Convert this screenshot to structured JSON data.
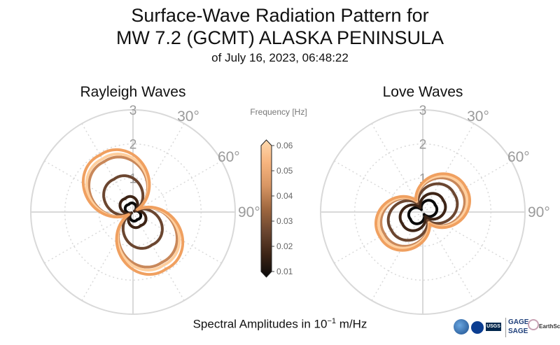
{
  "title": {
    "line1": "Surface-Wave Radiation Pattern for",
    "line2": "MW 7.2 (GCMT) ALASKA PENINSULA",
    "line3": "of July 16, 2023, 06:48:22"
  },
  "footer": {
    "label": "Spectral Amplitudes in 10",
    "exponent": "−1",
    "unit": "m/Hz"
  },
  "logos": {
    "usgs": "USGS",
    "gage": "GAGE",
    "sage": "SAGE",
    "earthscope": "EarthScope"
  },
  "colors": {
    "grid": "#d9d9d9",
    "tick_label": "#9a9a9a",
    "text": "#111111"
  },
  "chart_data": [
    {
      "type": "polar",
      "title": "Rayleigh Waves",
      "r_ticks": [
        "1",
        "2",
        "3"
      ],
      "rlim": [
        0,
        3
      ],
      "angle_ticks": [
        "30°",
        "60°",
        "90°"
      ],
      "series": [
        {
          "name": "0.01 Hz",
          "color": "#0a0a0a",
          "a": 0.15,
          "b": 0.05,
          "rot": 0.0,
          "lobe": 1.1,
          "azimuth_deg": -30
        },
        {
          "name": "0.02 Hz",
          "color": "#3d2416",
          "a": 0.3,
          "b": 0.05,
          "rot": 0.0,
          "lobe": 1.4,
          "azimuth_deg": -30
        },
        {
          "name": "0.03 Hz",
          "color": "#6b4630",
          "a": 0.75,
          "b": 0.1,
          "rot": 0.0,
          "lobe": 1.7,
          "azimuth_deg": -30
        },
        {
          "name": "0.05 Hz",
          "color": "#c9885a",
          "a": 1.15,
          "b": 0.15,
          "rot": 0.0,
          "lobe": 2.0,
          "azimuth_deg": -30
        },
        {
          "name": "0.055 Hz",
          "color": "#ffcf9e",
          "a": 1.22,
          "b": 0.15,
          "rot": 0.0,
          "lobe": 2.05,
          "azimuth_deg": -30
        },
        {
          "name": "0.06 Hz",
          "color": "#f0a060",
          "a": 1.32,
          "b": 0.15,
          "rot": 0.0,
          "lobe": 2.15,
          "azimuth_deg": -30
        }
      ]
    },
    {
      "type": "polar",
      "title": "Love Waves",
      "r_ticks": [
        "1",
        "2",
        "3"
      ],
      "rlim": [
        0,
        3
      ],
      "angle_ticks": [
        "30°",
        "60°",
        "90°"
      ],
      "series": [
        {
          "name": "0.01 Hz",
          "color": "#0a0a0a",
          "a": 0.25,
          "b": 0.08,
          "rot": 0.0,
          "lobe": 1.0,
          "azimuth_deg": 60
        },
        {
          "name": "0.02 Hz",
          "color": "#3d2416",
          "a": 0.4,
          "b": 0.15,
          "rot": 0.0,
          "lobe": 1.0,
          "azimuth_deg": 60
        },
        {
          "name": "0.03 Hz",
          "color": "#6b4630",
          "a": 0.58,
          "b": 0.28,
          "rot": 0.0,
          "lobe": 1.0,
          "azimuth_deg": 60
        },
        {
          "name": "0.05 Hz",
          "color": "#c9885a",
          "a": 0.7,
          "b": 0.35,
          "rot": 0.0,
          "lobe": 1.0,
          "azimuth_deg": 60
        },
        {
          "name": "0.055 Hz",
          "color": "#ffcf9e",
          "a": 0.74,
          "b": 0.37,
          "rot": 0.0,
          "lobe": 1.0,
          "azimuth_deg": 60
        },
        {
          "name": "0.06 Hz",
          "color": "#f0a060",
          "a": 0.78,
          "b": 0.4,
          "rot": 0.0,
          "lobe": 1.0,
          "azimuth_deg": 60
        }
      ]
    }
  ],
  "colorbar": {
    "label": "Frequency [Hz]",
    "ticks": [
      "0.06",
      "0.05",
      "0.04",
      "0.03",
      "0.02",
      "0.01"
    ],
    "stops": [
      "#0a0a0a",
      "#3d2416",
      "#6b4630",
      "#a06840",
      "#d89664",
      "#f7b47e",
      "#ffd9ae"
    ]
  }
}
